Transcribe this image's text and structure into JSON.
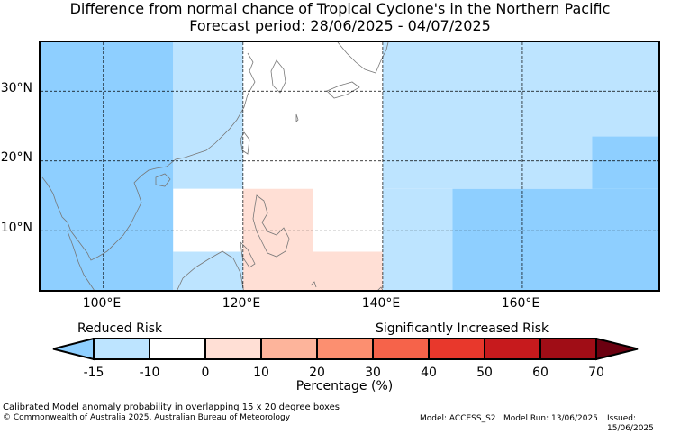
{
  "title_line1": "Difference from normal chance of Tropical Cyclone's in the Northern Pacific",
  "title_line2": "Forecast period: 28/06/2025 - 04/07/2025",
  "axes": {
    "lat_labels": [
      "30°N",
      "20°N",
      "10°N"
    ],
    "lon_labels": [
      "100°E",
      "120°E",
      "140°E",
      "160°E"
    ]
  },
  "map_region": {
    "lon_range": [
      91,
      180
    ],
    "lat_range": [
      1,
      37
    ],
    "gridlines_lon": [
      100,
      120,
      140,
      160
    ],
    "gridlines_lat": [
      10,
      20,
      30
    ]
  },
  "colorbar": {
    "left_caption": "Reduced Risk",
    "right_caption": "Significantly Increased Risk",
    "tick_labels": [
      "-15",
      "-10",
      "0",
      "10",
      "20",
      "30",
      "40",
      "50",
      "60",
      "70"
    ],
    "axis_label": "Percentage (%)",
    "colors": [
      "#8ecfff",
      "#bde4ff",
      "#ffffff",
      "#ffdfd5",
      "#fdb49b",
      "#fc8f70",
      "#f6634a",
      "#e8382c",
      "#c71a1d",
      "#a00d16",
      "#6b0010"
    ]
  },
  "anomaly_cells": [
    {
      "lon": [
        91,
        110
      ],
      "lat": [
        1,
        37
      ],
      "value": -15,
      "color": "#8ecfff"
    },
    {
      "lon": [
        110,
        120
      ],
      "lat": [
        16,
        37
      ],
      "value": -10,
      "color": "#bde4ff"
    },
    {
      "lon": [
        110,
        120
      ],
      "lat": [
        7,
        16
      ],
      "value": 0,
      "color": "#ffffff"
    },
    {
      "lon": [
        110,
        120
      ],
      "lat": [
        1,
        7
      ],
      "value": -10,
      "color": "#bde4ff"
    },
    {
      "lon": [
        120,
        140
      ],
      "lat": [
        16,
        37
      ],
      "value": 0,
      "color": "#ffffff"
    },
    {
      "lon": [
        120,
        130
      ],
      "lat": [
        1,
        16
      ],
      "value": 5,
      "color": "#ffdfd5"
    },
    {
      "lon": [
        130,
        140
      ],
      "lat": [
        7,
        16
      ],
      "value": 0,
      "color": "#ffffff"
    },
    {
      "lon": [
        130,
        140
      ],
      "lat": [
        1,
        7
      ],
      "value": 5,
      "color": "#ffdfd5"
    },
    {
      "lon": [
        140,
        180
      ],
      "lat": [
        16,
        37
      ],
      "value": -10,
      "color": "#bde4ff"
    },
    {
      "lon": [
        140,
        150
      ],
      "lat": [
        1,
        16
      ],
      "value": -10,
      "color": "#bde4ff"
    },
    {
      "lon": [
        150,
        180
      ],
      "lat": [
        1,
        16
      ],
      "value": -15,
      "color": "#8ecfff"
    },
    {
      "lon": [
        170,
        180
      ],
      "lat": [
        16,
        23.5
      ],
      "value": -15,
      "color": "#8ecfff"
    }
  ],
  "footer": {
    "note": "Calibrated Model anomaly probability in overlapping 15 x 20 degree boxes",
    "copyright": "© Commonwealth of Australia 2025, Australian Bureau of Meteorology",
    "model": "Model: ACCESS_S2",
    "model_run": "Model Run: 13/06/2025",
    "issued": "Issued: 15/06/2025"
  }
}
